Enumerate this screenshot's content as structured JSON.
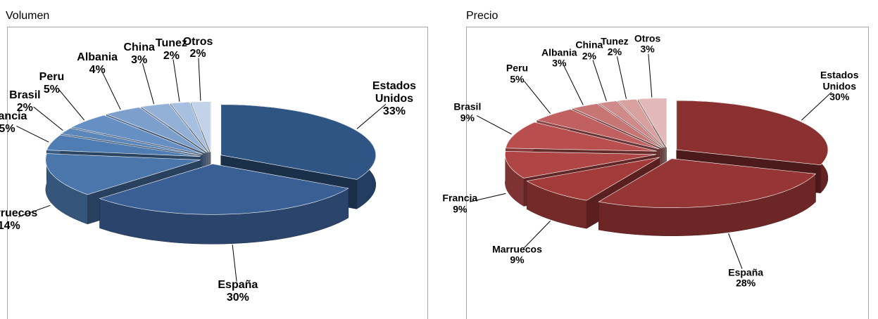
{
  "chart_data": [
    {
      "type": "pie",
      "title": "Volumen",
      "categories": [
        "Estados Unidos",
        "España",
        "Marruecos",
        "Francia",
        "Brasil",
        "Peru",
        "Albania",
        "China",
        "Tunez",
        "Otros"
      ],
      "values": [
        33,
        30,
        14,
        5,
        2,
        5,
        4,
        3,
        2,
        2
      ],
      "value_labels": [
        "33%",
        "30%",
        "14%",
        "5%",
        "2%",
        "5%",
        "4%",
        "3%",
        "2%",
        "2%"
      ],
      "colors": [
        "#2f5584",
        "#3a5f94",
        "#4a76ab",
        "#4f7db3",
        "#5b87bb",
        "#6690c4",
        "#7c9fcc",
        "#93b0d6",
        "#a8c0df",
        "#c2d3e9"
      ]
    },
    {
      "type": "pie",
      "title": "Precio",
      "categories": [
        "Estados Unidos",
        "España",
        "Marruecos",
        "Francia",
        "Brasil",
        "Peru",
        "Albania",
        "China",
        "Tunez",
        "Otros"
      ],
      "values": [
        30,
        28,
        9,
        9,
        9,
        5,
        3,
        2,
        2,
        3
      ],
      "value_labels": [
        "30%",
        "28%",
        "9%",
        "9%",
        "9%",
        "5%",
        "3%",
        "2%",
        "2%",
        "3%"
      ],
      "colors": [
        "#8b3030",
        "#963535",
        "#a33b3b",
        "#b04545",
        "#b94e4e",
        "#c06060",
        "#c87575",
        "#d08a8a",
        "#d9a0a0",
        "#e2b8b8"
      ]
    }
  ]
}
